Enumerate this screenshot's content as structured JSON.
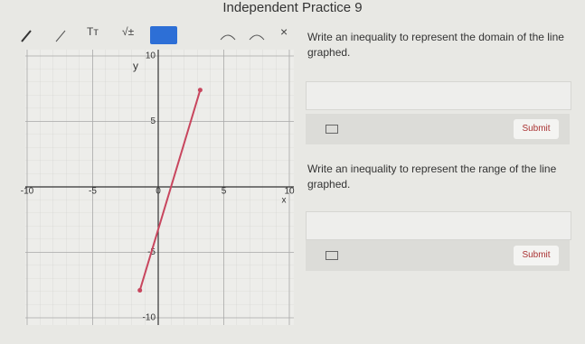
{
  "header": {
    "title": "Independent Practice 9"
  },
  "toolbar": {
    "text_tool": "Tт",
    "math_tool": "√±",
    "close": "×"
  },
  "chart_data": {
    "type": "line",
    "xlabel": "x",
    "ylabel": "y",
    "xlim": [
      -10,
      10
    ],
    "ylim": [
      -10,
      10
    ],
    "xticks": [
      -10,
      -5,
      0,
      5,
      10
    ],
    "yticks": [
      -10,
      -5,
      5,
      10
    ],
    "grid": true,
    "series": [
      {
        "color": "#c8465e",
        "x": [
          -1.4,
          3.2
        ],
        "values": [
          -7.9,
          7.4
        ]
      }
    ]
  },
  "questions": [
    {
      "prompt": "Write an inequality to represent the domain of the line graphed.",
      "button": "Submit"
    },
    {
      "prompt": "Write an inequality to represent the range of the line graphed.",
      "button": "Submit"
    }
  ]
}
